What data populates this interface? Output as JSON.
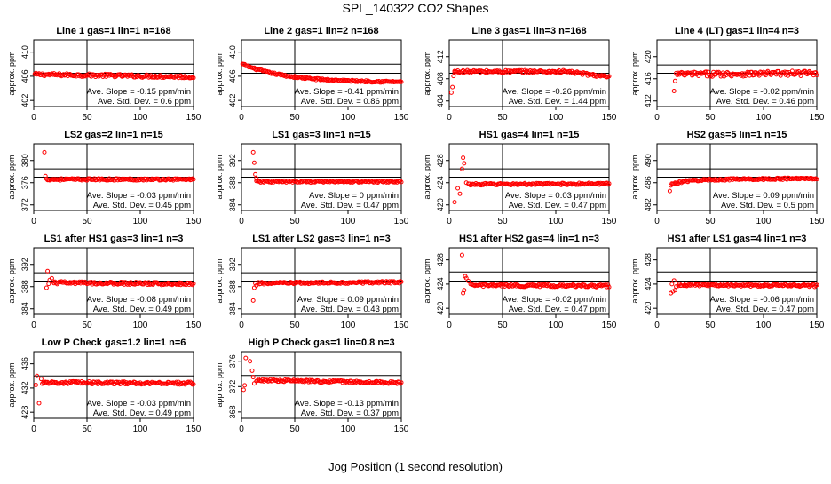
{
  "figure": {
    "title": "SPL_140322  CO2 Shapes",
    "xlabel": "Jog Position (1 second resolution)"
  },
  "colors": {
    "points": "#ff0000",
    "axes": "#000000"
  },
  "chart_data": [
    {
      "type": "scatter",
      "title": "Line 1 gas=1 lin=1 n=168",
      "ylabel": "approx. ppm",
      "xlim": [
        0,
        150
      ],
      "ylim": [
        401,
        412
      ],
      "yticks": [
        402,
        406,
        410
      ],
      "xticks": [
        0,
        50,
        100,
        150
      ],
      "grid": "crosshair at x=50 and y=406",
      "slope_text": "Ave. Slope = -0.15  ppm/min",
      "sd_text": "Ave. Std. Dev. = 0.6  ppm",
      "shape": {
        "start": 1,
        "initial": [],
        "level": 406.3,
        "drift": -0.4,
        "noise": 0.25
      }
    },
    {
      "type": "scatter",
      "title": "Line 2 gas=1 lin=2 n=168",
      "ylabel": "approx. ppm",
      "xlim": [
        0,
        150
      ],
      "ylim": [
        401,
        412
      ],
      "yticks": [
        402,
        406,
        410
      ],
      "xticks": [
        0,
        50,
        100,
        150
      ],
      "grid": "crosshairs at x=50 and y=406",
      "slope_text": "Ave. Slope = -0.41  ppm/min",
      "sd_text": "Ave. Std. Dev. = 0.86  ppm",
      "shape": {
        "start": 1,
        "initial": [],
        "level": 408,
        "drift": -3,
        "noise": 0.15,
        "curve": "decay"
      }
    },
    {
      "type": "scatter",
      "title": "Line 3 gas=1 lin=3 n=168",
      "ylabel": "approx. ppm",
      "xlim": [
        0,
        150
      ],
      "ylim": [
        403,
        415
      ],
      "yticks": [
        404,
        408,
        412
      ],
      "xticks": [
        0,
        50,
        100,
        150
      ],
      "grid": "crosshair at x=50 and y=408",
      "slope_text": "Ave. Slope = -0.26  ppm/min",
      "sd_text": "Ave. Std. Dev. = 1.44  ppm",
      "shape": {
        "start": 5,
        "initial": [
          [
            2,
            405.5
          ],
          [
            3,
            406.5
          ],
          [
            4,
            408.5
          ],
          [
            5,
            409.2
          ]
        ],
        "level": 409.3,
        "drift": -1,
        "noise": 0.25,
        "curve": "rolloff"
      }
    },
    {
      "type": "scatter",
      "title": "Line 4 (LT) gas=1 lin=4 n=3",
      "ylabel": "approx. ppm",
      "xlim": [
        0,
        150
      ],
      "ylim": [
        411,
        423
      ],
      "yticks": [
        412,
        416,
        420
      ],
      "xticks": [
        0,
        50,
        100,
        150
      ],
      "grid": "crosshair at x=50 and y=416.5",
      "slope_text": "Ave. Slope = -0.02  ppm/min",
      "sd_text": "Ave. Std. Dev. = 0.46  ppm",
      "shape": {
        "start": 18,
        "initial": [
          [
            16,
            413.8
          ],
          [
            17,
            415.6
          ]
        ],
        "level": 416.8,
        "drift": 0.2,
        "noise": 0.45
      }
    },
    {
      "type": "scatter",
      "title": "LS2 gas=2 lin=1 n=15",
      "ylabel": "approx. ppm",
      "xlim": [
        0,
        150
      ],
      "ylim": [
        371,
        383
      ],
      "yticks": [
        372,
        376,
        380
      ],
      "xticks": [
        0,
        50,
        100,
        150
      ],
      "grid": "crosshair at x=50 and y=376.5",
      "slope_text": "Ave. Slope = -0.03  ppm/min",
      "sd_text": "Ave. Std. Dev. = 0.45  ppm",
      "shape": {
        "start": 12,
        "initial": [
          [
            10,
            381.5
          ],
          [
            11,
            377.2
          ]
        ],
        "level": 376.6,
        "drift": 0,
        "noise": 0.18
      }
    },
    {
      "type": "scatter",
      "title": "LS1 gas=3 lin=1 n=15",
      "ylabel": "approx. ppm",
      "xlim": [
        0,
        150
      ],
      "ylim": [
        383,
        395
      ],
      "yticks": [
        384,
        388,
        392
      ],
      "xticks": [
        0,
        50,
        100,
        150
      ],
      "grid": "crosshair at x=50 and y=388",
      "slope_text": "Ave. Slope = 0  ppm/min",
      "sd_text": "Ave. Std. Dev. = 0.47  ppm",
      "shape": {
        "start": 14,
        "initial": [
          [
            11,
            393.5
          ],
          [
            12,
            391.6
          ],
          [
            13,
            389.5
          ],
          [
            14,
            388.8
          ]
        ],
        "level": 388.2,
        "drift": 0,
        "noise": 0.18
      }
    },
    {
      "type": "scatter",
      "title": "HS1 gas=4 lin=1 n=15",
      "ylabel": "approx. ppm",
      "xlim": [
        0,
        150
      ],
      "ylim": [
        419,
        431
      ],
      "yticks": [
        420,
        424,
        428
      ],
      "xticks": [
        0,
        50,
        100,
        150
      ],
      "grid": "crosshair at x=50 and y=423.5",
      "slope_text": "Ave. Slope = 0.03  ppm/min",
      "sd_text": "Ave. Std. Dev. = 0.47  ppm",
      "shape": {
        "start": 18,
        "initial": [
          [
            5,
            420.5
          ],
          [
            8,
            423
          ],
          [
            10,
            422
          ],
          [
            12,
            426.5
          ],
          [
            13,
            428.5
          ],
          [
            14,
            427.5
          ],
          [
            16,
            424
          ]
        ],
        "level": 423.7,
        "drift": 0.1,
        "noise": 0.18
      }
    },
    {
      "type": "scatter",
      "title": "HS2 gas=5 lin=1 n=15",
      "ylabel": "approx. ppm",
      "xlim": [
        0,
        150
      ],
      "ylim": [
        481,
        493
      ],
      "yticks": [
        482,
        486,
        490
      ],
      "xticks": [
        0,
        50,
        100,
        150
      ],
      "grid": "crosshair at x=50 and y=486",
      "slope_text": "Ave. Slope = 0.09  ppm/min",
      "sd_text": "Ave. Std. Dev. = 0.5  ppm",
      "shape": {
        "start": 14,
        "initial": [
          [
            12,
            484.5
          ],
          [
            13,
            485.5
          ]
        ],
        "level": 486.5,
        "drift": 0.3,
        "noise": 0.18,
        "curve": "rise"
      }
    },
    {
      "type": "scatter",
      "title": "LS1 after HS1 gas=3 lin=1 n=3",
      "ylabel": "approx. ppm",
      "xlim": [
        0,
        150
      ],
      "ylim": [
        383,
        395
      ],
      "yticks": [
        384,
        388,
        392
      ],
      "xticks": [
        0,
        50,
        100,
        150
      ],
      "grid": "crosshair at x=50 and y=388",
      "slope_text": "Ave. Slope = -0.08  ppm/min",
      "sd_text": "Ave. Std. Dev. = 0.49  ppm",
      "shape": {
        "start": 18,
        "initial": [
          [
            12,
            387.8
          ],
          [
            13,
            390.8
          ],
          [
            14,
            388.5
          ],
          [
            15,
            389.2
          ],
          [
            17,
            389.5
          ]
        ],
        "level": 388.7,
        "drift": -0.2,
        "noise": 0.25
      }
    },
    {
      "type": "scatter",
      "title": "LS1 after LS2 gas=3 lin=1 n=3",
      "ylabel": "approx. ppm",
      "xlim": [
        0,
        150
      ],
      "ylim": [
        383,
        395
      ],
      "yticks": [
        384,
        388,
        392
      ],
      "xticks": [
        0,
        50,
        100,
        150
      ],
      "grid": "crosshair at x=50 and y=388",
      "slope_text": "Ave. Slope = 0.09  ppm/min",
      "sd_text": "Ave. Std. Dev. = 0.43  ppm",
      "shape": {
        "start": 16,
        "initial": [
          [
            11,
            385.5
          ],
          [
            12,
            387.8
          ],
          [
            13,
            388.6
          ],
          [
            14,
            388.2
          ]
        ],
        "level": 388.6,
        "drift": 0.2,
        "noise": 0.2
      }
    },
    {
      "type": "scatter",
      "title": "HS1 after HS2 gas=4 lin=1 n=3",
      "ylabel": "approx. ppm",
      "xlim": [
        0,
        150
      ],
      "ylim": [
        419,
        430
      ],
      "yticks": [
        420,
        424,
        428
      ],
      "xticks": [
        0,
        50,
        100,
        150
      ],
      "grid": "crosshair at x=50 and y=423.5",
      "slope_text": "Ave. Slope = -0.02  ppm/min",
      "sd_text": "Ave. Std. Dev. = 0.47  ppm",
      "shape": {
        "start": 20,
        "initial": [
          [
            12,
            428.8
          ],
          [
            13,
            422.5
          ],
          [
            14,
            423
          ],
          [
            15,
            425.3
          ],
          [
            16,
            425
          ],
          [
            18,
            424.5
          ]
        ],
        "level": 423.8,
        "drift": -0.1,
        "noise": 0.2
      }
    },
    {
      "type": "scatter",
      "title": "HS1 after LS1 gas=4 lin=1 n=3",
      "ylabel": "approx. ppm",
      "xlim": [
        0,
        150
      ],
      "ylim": [
        419,
        430
      ],
      "yticks": [
        420,
        424,
        428
      ],
      "xticks": [
        0,
        50,
        100,
        150
      ],
      "grid": "crosshair at x=50 and y=423.5",
      "slope_text": "Ave. Slope = -0.06  ppm/min",
      "sd_text": "Ave. Std. Dev. = 0.47  ppm",
      "shape": {
        "start": 20,
        "initial": [
          [
            13,
            422.5
          ],
          [
            14,
            424
          ],
          [
            15,
            422.8
          ],
          [
            16,
            424.6
          ],
          [
            17,
            423
          ],
          [
            18,
            423.6
          ]
        ],
        "level": 423.9,
        "drift": -0.15,
        "noise": 0.2
      }
    },
    {
      "type": "scatter",
      "title": "Low P Check gas=1.2 lin=1 n=6",
      "ylabel": "approx. ppm",
      "xlim": [
        0,
        150
      ],
      "ylim": [
        427,
        438
      ],
      "yticks": [
        428,
        432,
        436
      ],
      "xticks": [
        0,
        50,
        100,
        150
      ],
      "grid": "crosshair at x=50 and y=432.5",
      "slope_text": "Ave. Slope = -0.03  ppm/min",
      "sd_text": "Ave. Std. Dev. = 0.49  ppm",
      "shape": {
        "start": 8,
        "initial": [
          [
            2,
            432.5
          ],
          [
            3,
            434
          ],
          [
            5,
            429.5
          ],
          [
            7,
            433.5
          ]
        ],
        "level": 432.9,
        "drift": -0.1,
        "noise": 0.22
      }
    },
    {
      "type": "scatter",
      "title": "High P Check gas=1 lin=0.8 n=3",
      "ylabel": "approx. ppm",
      "xlim": [
        0,
        150
      ],
      "ylim": [
        367,
        377.5
      ],
      "yticks": [
        368,
        372,
        376
      ],
      "xticks": [
        0,
        50,
        100,
        150
      ],
      "grid": "crosshair at x=50 and y=373",
      "slope_text": "Ave. Slope = -0.13  ppm/min",
      "sd_text": "Ave. Std. Dev. = 0.37  ppm",
      "shape": {
        "start": 14,
        "initial": [
          [
            2,
            371.5
          ],
          [
            3,
            372.2
          ],
          [
            4,
            376.5
          ],
          [
            8,
            376
          ],
          [
            10,
            374.5
          ],
          [
            11,
            373.5
          ],
          [
            12,
            372.5
          ]
        ],
        "level": 373,
        "drift": -0.4,
        "noise": 0.18
      }
    }
  ]
}
